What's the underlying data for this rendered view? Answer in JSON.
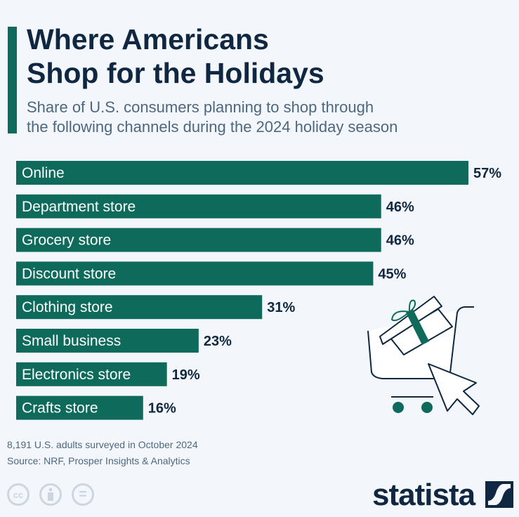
{
  "header": {
    "title_line1": "Where Americans",
    "title_line2": "Shop for the Holidays",
    "subtitle_line1": "Share of U.S. consumers planning to shop through",
    "subtitle_line2": "the following channels during the 2024 holiday season"
  },
  "chart_data": {
    "type": "bar",
    "orientation": "horizontal",
    "categories": [
      "Online",
      "Department store",
      "Grocery store",
      "Discount store",
      "Clothing store",
      "Small business",
      "Electronics store",
      "Crafts store"
    ],
    "values": [
      57,
      46,
      46,
      45,
      31,
      23,
      19,
      16
    ],
    "labels": [
      "57%",
      "46%",
      "46%",
      "45%",
      "31%",
      "23%",
      "19%",
      "16%"
    ],
    "unit": "%",
    "xlim": [
      0,
      57
    ],
    "grid": false,
    "bar_color": "#0e6b5c"
  },
  "footer": {
    "note": "8,191 U.S. adults surveyed in October 2024",
    "source": "Source: NRF, Prosper Insights & Analytics",
    "cc": "cc",
    "equals": "=",
    "logo": "statista"
  },
  "icons": [
    "shopping-cart-icon",
    "gift-icon",
    "cursor-icon",
    "cc-icon",
    "attribution-icon",
    "no-derivatives-icon",
    "statista-logo"
  ]
}
